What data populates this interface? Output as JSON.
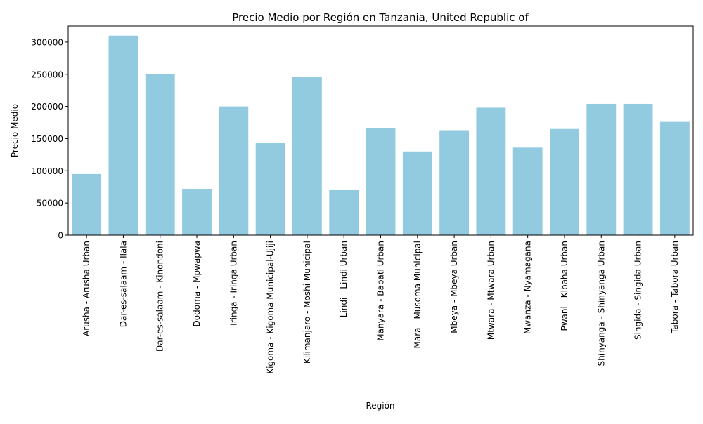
{
  "chart_data": {
    "type": "bar",
    "title": "Precio Medio por Región en Tanzania, United Republic of",
    "xlabel": "Región",
    "ylabel": "Precio Medio",
    "ylim": [
      0,
      325000
    ],
    "yticks": [
      0,
      50000,
      100000,
      150000,
      200000,
      250000,
      300000
    ],
    "bar_color": "#92cbe0",
    "grid": false,
    "categories": [
      "Arusha - Arusha Urban",
      "Dar-es-salaam - Ilala",
      "Dar-es-salaam - Kinondoni",
      "Dodoma - Mpwapwa",
      "Iringa - Iringa Urban",
      "Kigoma - Kigoma Municipal-Ujiji",
      "Kilimanjaro - Moshi Municipal",
      "Lindi - Lindi Urban",
      "Manyara - Babati Urban",
      "Mara - Musoma Municipal",
      "Mbeya - Mbeya Urban",
      "Mtwara - Mtwara Urban",
      "Mwanza - Nyamagana",
      "Pwani - Kibaha Urban",
      "Shinyanga - Shinyanga Urban",
      "Singida - Singida Urban",
      "Tabora - Tabora Urban"
    ],
    "values": [
      95000,
      310000,
      250000,
      72000,
      200000,
      143000,
      246000,
      70000,
      166000,
      130000,
      163000,
      198000,
      136000,
      165000,
      204000,
      204000,
      176000
    ]
  }
}
